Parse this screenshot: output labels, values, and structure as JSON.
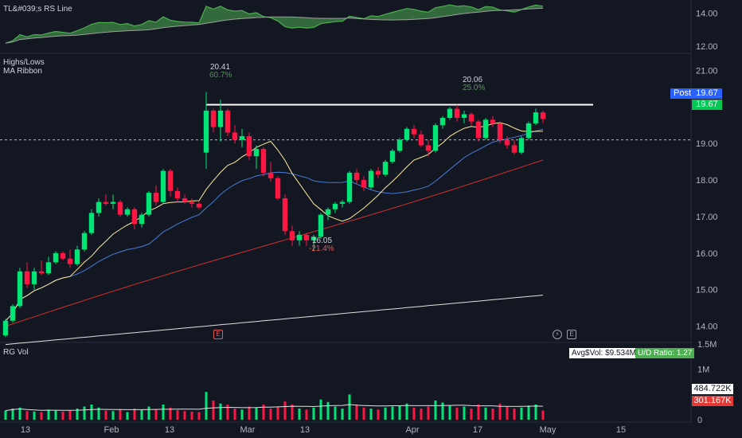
{
  "rs_pane": {
    "label": "TL&#039;s RS Line",
    "y_ticks": [
      "14.00",
      "12.00"
    ]
  },
  "price_pane": {
    "labels": [
      "Highs/Lows",
      "MA Ribbon"
    ],
    "y_ticks": [
      "21.00",
      "19.00",
      "18.00",
      "17.00",
      "16.00",
      "15.00",
      "14.00"
    ],
    "high_annotation": {
      "value": "20.41",
      "pct": "60.7%"
    },
    "high2_annotation": {
      "value": "20.06",
      "pct": "25.0%"
    },
    "low_annotation": {
      "value": "16.05",
      "pct": "-21.4%"
    },
    "post_label": "Post",
    "post_price": "19.67",
    "last_price": "19.67"
  },
  "vol_pane": {
    "label": "RG Vol",
    "y_ticks": [
      "1.5M",
      "1M",
      "0"
    ],
    "avg_dollar_vol": "Avg$Vol: $9.534M",
    "ud_ratio": "U/D Ratio: 1.27",
    "vol_value_1": "484.722K",
    "vol_value_2": "301.167K"
  },
  "x_axis": {
    "labels": [
      "13",
      "Feb",
      "13",
      "Mar",
      "13",
      "Apr",
      "17",
      "May",
      "15"
    ]
  },
  "events": {
    "earnings_glyph": "E",
    "dividend_glyph": "E",
    "split_glyph": "⚡"
  },
  "colors": {
    "up": "#00e676",
    "down": "#ff1744",
    "ma_fast": "#ffeb9c",
    "ma_mid": "#4a7bd6",
    "ma_slow": "#d32f2f",
    "ma_long": "#e0e0e0",
    "rs_line": "#4caf50",
    "resistance": "#ffffff",
    "bg": "#131722"
  },
  "chart_data": {
    "type": "candlestick",
    "price_ylim": [
      13.6,
      21.4
    ],
    "candles": [
      [
        13.75,
        14.2,
        13.7,
        14.15
      ],
      [
        14.15,
        14.6,
        14.1,
        14.55
      ],
      [
        14.55,
        15.6,
        14.5,
        15.5
      ],
      [
        15.5,
        15.75,
        15.05,
        15.15
      ],
      [
        15.15,
        15.6,
        15.0,
        15.5
      ],
      [
        15.5,
        15.8,
        15.4,
        15.45
      ],
      [
        15.45,
        15.9,
        15.4,
        15.75
      ],
      [
        15.75,
        16.05,
        15.7,
        16.0
      ],
      [
        16.0,
        16.05,
        15.8,
        15.85
      ],
      [
        15.85,
        16.1,
        15.6,
        15.7
      ],
      [
        15.7,
        16.2,
        15.65,
        16.1
      ],
      [
        16.1,
        16.6,
        16.05,
        16.55
      ],
      [
        16.55,
        17.2,
        16.5,
        17.1
      ],
      [
        17.1,
        17.5,
        17.0,
        17.4
      ],
      [
        17.4,
        17.6,
        17.3,
        17.35
      ],
      [
        17.35,
        17.6,
        17.2,
        17.4
      ],
      [
        17.4,
        17.45,
        17.0,
        17.05
      ],
      [
        17.05,
        17.25,
        17.0,
        17.2
      ],
      [
        17.2,
        17.25,
        16.65,
        16.8
      ],
      [
        16.8,
        17.1,
        16.7,
        17.05
      ],
      [
        17.05,
        17.7,
        17.0,
        17.65
      ],
      [
        17.65,
        17.85,
        17.3,
        17.4
      ],
      [
        17.4,
        18.3,
        17.35,
        18.25
      ],
      [
        18.25,
        18.3,
        17.55,
        17.7
      ],
      [
        17.7,
        17.8,
        17.4,
        17.5
      ],
      [
        17.5,
        17.6,
        17.35,
        17.4
      ],
      [
        17.4,
        17.5,
        17.25,
        17.35
      ],
      [
        17.35,
        17.4,
        17.2,
        17.25
      ],
      [
        18.75,
        20.41,
        18.3,
        19.9
      ],
      [
        19.9,
        19.95,
        19.3,
        19.45
      ],
      [
        19.45,
        20.2,
        19.05,
        19.9
      ],
      [
        19.9,
        19.95,
        19.2,
        19.3
      ],
      [
        19.3,
        19.5,
        19.0,
        19.1
      ],
      [
        19.1,
        19.4,
        18.9,
        19.2
      ],
      [
        19.2,
        19.3,
        18.55,
        18.65
      ],
      [
        18.65,
        18.95,
        18.3,
        18.85
      ],
      [
        18.85,
        18.9,
        18.1,
        18.2
      ],
      [
        18.2,
        18.5,
        17.95,
        18.05
      ],
      [
        18.05,
        18.1,
        17.45,
        17.5
      ],
      [
        17.5,
        17.6,
        16.5,
        16.6
      ],
      [
        16.6,
        16.75,
        16.2,
        16.35
      ],
      [
        16.35,
        16.6,
        16.2,
        16.5
      ],
      [
        16.5,
        16.55,
        16.2,
        16.35
      ],
      [
        16.35,
        16.5,
        16.05,
        16.45
      ],
      [
        16.45,
        17.1,
        16.4,
        17.05
      ],
      [
        17.05,
        17.25,
        16.9,
        17.2
      ],
      [
        17.2,
        17.4,
        17.1,
        17.35
      ],
      [
        17.35,
        17.45,
        17.25,
        17.4
      ],
      [
        17.4,
        18.25,
        17.35,
        18.2
      ],
      [
        18.2,
        18.3,
        17.9,
        18.0
      ],
      [
        18.0,
        18.1,
        17.7,
        17.8
      ],
      [
        17.8,
        18.3,
        17.75,
        18.25
      ],
      [
        18.25,
        18.35,
        18.05,
        18.15
      ],
      [
        18.15,
        18.55,
        18.1,
        18.5
      ],
      [
        18.5,
        18.85,
        18.45,
        18.8
      ],
      [
        18.8,
        19.15,
        18.75,
        19.1
      ],
      [
        19.1,
        19.45,
        19.05,
        19.4
      ],
      [
        19.4,
        19.5,
        19.15,
        19.25
      ],
      [
        19.25,
        19.35,
        18.9,
        18.95
      ],
      [
        18.95,
        19.1,
        18.65,
        18.8
      ],
      [
        18.8,
        19.55,
        18.75,
        19.5
      ],
      [
        19.5,
        19.75,
        19.4,
        19.7
      ],
      [
        19.7,
        20.0,
        19.65,
        19.95
      ],
      [
        19.95,
        20.06,
        19.6,
        19.7
      ],
      [
        19.7,
        19.9,
        19.55,
        19.8
      ],
      [
        19.8,
        19.85,
        19.5,
        19.6
      ],
      [
        19.6,
        19.65,
        19.05,
        19.15
      ],
      [
        19.15,
        19.7,
        19.1,
        19.65
      ],
      [
        19.65,
        19.75,
        19.45,
        19.55
      ],
      [
        19.55,
        19.6,
        19.0,
        19.1
      ],
      [
        19.1,
        19.2,
        18.85,
        18.95
      ],
      [
        18.95,
        19.1,
        18.7,
        18.75
      ],
      [
        18.75,
        19.2,
        18.7,
        19.15
      ],
      [
        19.15,
        19.6,
        19.1,
        19.55
      ],
      [
        19.55,
        19.95,
        19.5,
        19.85
      ],
      [
        19.85,
        19.9,
        19.55,
        19.67
      ]
    ],
    "volumes": [
      0.18,
      0.22,
      0.24,
      0.17,
      0.16,
      0.15,
      0.2,
      0.18,
      0.16,
      0.19,
      0.22,
      0.26,
      0.3,
      0.24,
      0.18,
      0.17,
      0.2,
      0.15,
      0.22,
      0.19,
      0.26,
      0.21,
      0.3,
      0.24,
      0.19,
      0.17,
      0.16,
      0.15,
      0.55,
      0.38,
      0.32,
      0.3,
      0.22,
      0.2,
      0.26,
      0.24,
      0.3,
      0.22,
      0.26,
      0.36,
      0.3,
      0.22,
      0.2,
      0.24,
      0.4,
      0.35,
      0.26,
      0.22,
      0.5,
      0.3,
      0.24,
      0.22,
      0.2,
      0.24,
      0.26,
      0.28,
      0.32,
      0.24,
      0.22,
      0.26,
      0.38,
      0.34,
      0.28,
      0.24,
      0.26,
      0.22,
      0.3,
      0.24,
      0.22,
      0.32,
      0.26,
      0.22,
      0.24,
      0.28,
      0.3,
      0.18
    ],
    "vol_ylim": [
      0,
      1.5
    ],
    "ma_fast_period": 10,
    "ma_mid_period": 21,
    "resistance_level": 20.06
  }
}
